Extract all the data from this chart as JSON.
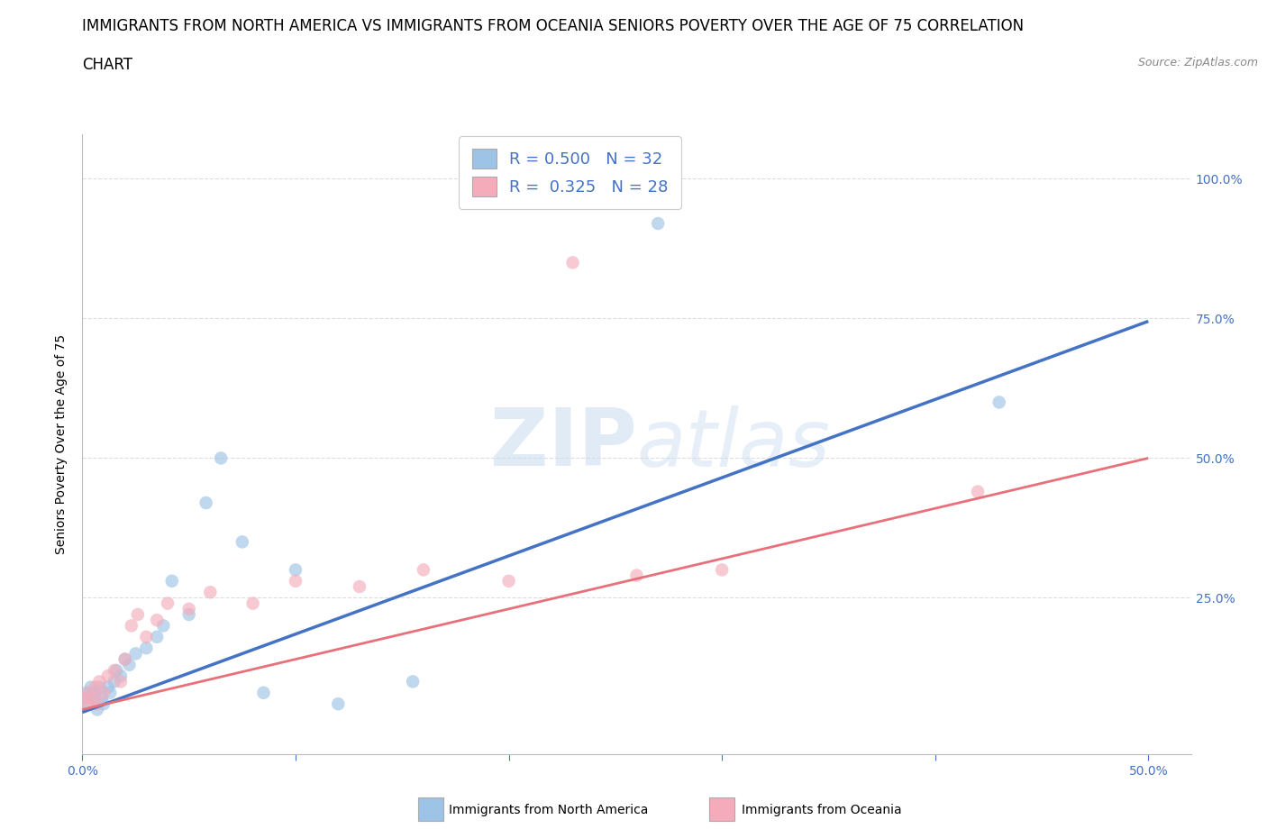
{
  "title_line1": "IMMIGRANTS FROM NORTH AMERICA VS IMMIGRANTS FROM OCEANIA SENIORS POVERTY OVER THE AGE OF 75 CORRELATION",
  "title_line2": "CHART",
  "source": "Source: ZipAtlas.com",
  "ylabel": "Seniors Poverty Over the Age of 75",
  "xlim": [
    0.0,
    0.52
  ],
  "ylim": [
    -0.03,
    1.08
  ],
  "ytick_positions": [
    0.0,
    0.25,
    0.5,
    0.75,
    1.0
  ],
  "yticklabels": [
    "",
    "25.0%",
    "50.0%",
    "75.0%",
    "100.0%"
  ],
  "R_blue": 0.5,
  "N_blue": 32,
  "R_pink": 0.325,
  "N_pink": 28,
  "blue_color": "#9DC3E6",
  "pink_color": "#F4ACBB",
  "trendline_blue": "#4472C4",
  "trendline_pink": "#E8707A",
  "blue_intercept": 0.045,
  "blue_slope": 1.4,
  "pink_intercept": 0.05,
  "pink_slope": 0.9,
  "north_america_x": [
    0.001,
    0.002,
    0.003,
    0.004,
    0.005,
    0.006,
    0.007,
    0.008,
    0.009,
    0.01,
    0.012,
    0.013,
    0.015,
    0.016,
    0.018,
    0.02,
    0.022,
    0.025,
    0.03,
    0.035,
    0.038,
    0.042,
    0.05,
    0.058,
    0.065,
    0.075,
    0.085,
    0.1,
    0.12,
    0.155,
    0.27,
    0.43
  ],
  "north_america_y": [
    0.07,
    0.08,
    0.06,
    0.09,
    0.07,
    0.08,
    0.05,
    0.09,
    0.07,
    0.06,
    0.09,
    0.08,
    0.1,
    0.12,
    0.11,
    0.14,
    0.13,
    0.15,
    0.16,
    0.18,
    0.2,
    0.28,
    0.22,
    0.42,
    0.5,
    0.35,
    0.08,
    0.3,
    0.06,
    0.1,
    0.92,
    0.6
  ],
  "oceania_x": [
    0.001,
    0.002,
    0.003,
    0.005,
    0.006,
    0.007,
    0.008,
    0.01,
    0.012,
    0.015,
    0.018,
    0.02,
    0.023,
    0.026,
    0.03,
    0.035,
    0.04,
    0.05,
    0.06,
    0.08,
    0.1,
    0.13,
    0.16,
    0.2,
    0.23,
    0.26,
    0.3,
    0.42
  ],
  "oceania_y": [
    0.07,
    0.06,
    0.08,
    0.07,
    0.09,
    0.06,
    0.1,
    0.08,
    0.11,
    0.12,
    0.1,
    0.14,
    0.2,
    0.22,
    0.18,
    0.21,
    0.24,
    0.23,
    0.26,
    0.24,
    0.28,
    0.27,
    0.3,
    0.28,
    0.85,
    0.29,
    0.3,
    0.44
  ],
  "background_color": "#FFFFFF",
  "grid_color": "#DDDDDD",
  "title_fontsize": 12,
  "axis_fontsize": 10,
  "tick_fontsize": 10,
  "legend_fontsize": 13
}
